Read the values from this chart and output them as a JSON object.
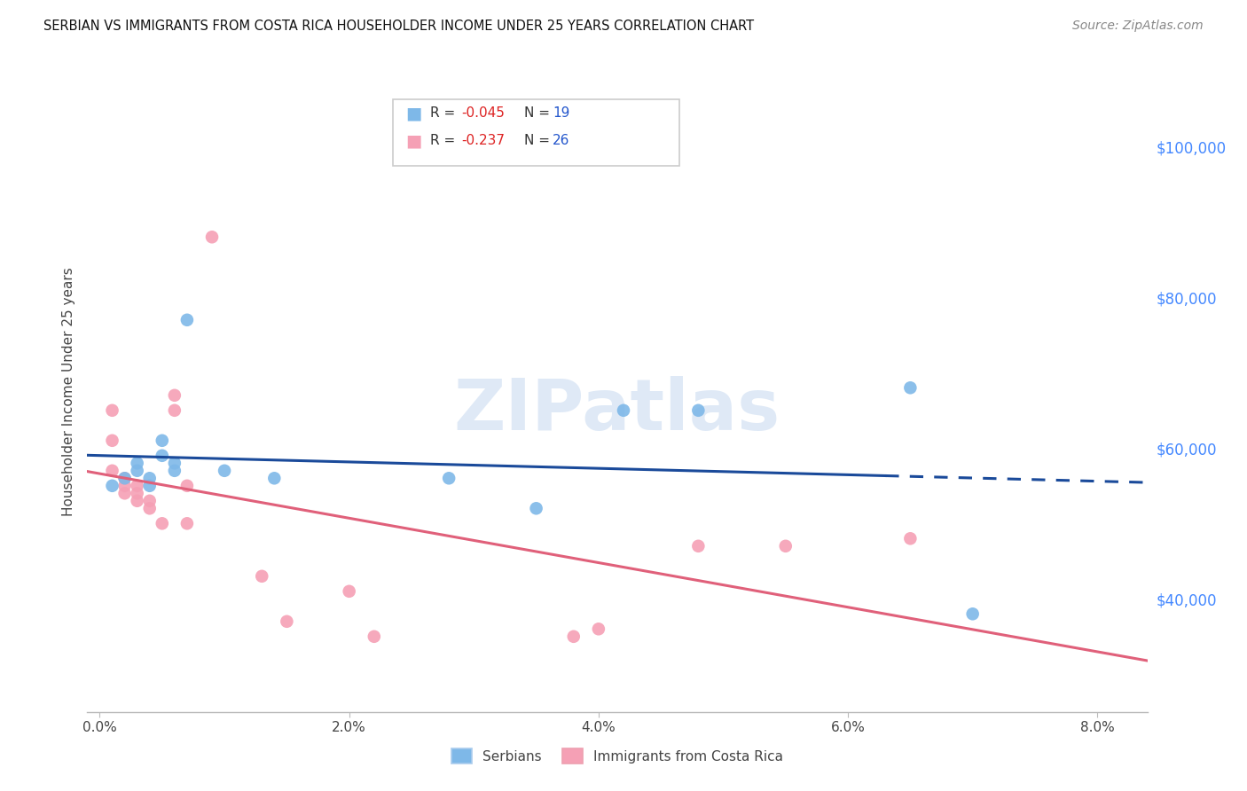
{
  "title": "SERBIAN VS IMMIGRANTS FROM COSTA RICA HOUSEHOLDER INCOME UNDER 25 YEARS CORRELATION CHART",
  "source": "Source: ZipAtlas.com",
  "ylabel": "Householder Income Under 25 years",
  "xlabel_ticks": [
    "0.0%",
    "2.0%",
    "4.0%",
    "6.0%",
    "8.0%"
  ],
  "xlabel_vals": [
    0.0,
    0.02,
    0.04,
    0.06,
    0.08
  ],
  "ylabel_ticks": [
    "$40,000",
    "$60,000",
    "$80,000",
    "$100,000"
  ],
  "ylabel_vals": [
    40000,
    60000,
    80000,
    100000
  ],
  "ylim": [
    25000,
    110000
  ],
  "xlim": [
    -0.001,
    0.084
  ],
  "watermark": "ZIPatlas",
  "serbian_color": "#7EB8E8",
  "serbian_line_color": "#1A4A9A",
  "costa_rica_color": "#F5A0B5",
  "costa_rica_line_color": "#E0607A",
  "serbian_x": [
    0.001,
    0.002,
    0.003,
    0.003,
    0.004,
    0.004,
    0.005,
    0.005,
    0.006,
    0.006,
    0.007,
    0.01,
    0.014,
    0.028,
    0.035,
    0.042,
    0.048,
    0.065,
    0.07
  ],
  "serbian_y": [
    55000,
    56000,
    57000,
    58000,
    55000,
    56000,
    59000,
    61000,
    57000,
    58000,
    77000,
    57000,
    56000,
    56000,
    52000,
    65000,
    65000,
    68000,
    38000
  ],
  "costa_rica_x": [
    0.001,
    0.001,
    0.001,
    0.002,
    0.002,
    0.002,
    0.003,
    0.003,
    0.003,
    0.004,
    0.004,
    0.005,
    0.006,
    0.006,
    0.007,
    0.007,
    0.009,
    0.013,
    0.015,
    0.02,
    0.022,
    0.038,
    0.04,
    0.048,
    0.055,
    0.065
  ],
  "costa_rica_y": [
    57000,
    61000,
    65000,
    54000,
    55000,
    56000,
    53000,
    54000,
    55000,
    52000,
    53000,
    50000,
    65000,
    67000,
    50000,
    55000,
    88000,
    43000,
    37000,
    41000,
    35000,
    35000,
    36000,
    47000,
    47000,
    48000
  ],
  "serbian_line_solid_end": 0.063,
  "background_color": "#FFFFFF",
  "grid_color": "#CCCCCC",
  "grid_linestyle": "--"
}
